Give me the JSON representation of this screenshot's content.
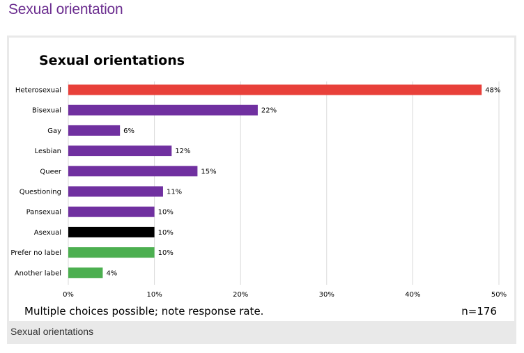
{
  "page": {
    "heading": "Sexual orientation",
    "caption": "Sexual orientations"
  },
  "colors": {
    "heading": "#6b2d8f",
    "gridline": "#d9d9d9"
  },
  "chart_data": {
    "type": "bar",
    "orientation": "horizontal",
    "title": "Sexual orientations",
    "categories": [
      "Heterosexual",
      "Bisexual",
      "Gay",
      "Lesbian",
      "Queer",
      "Questioning",
      "Pansexual",
      "Asexual",
      "Prefer no label",
      "Another label"
    ],
    "values": [
      48,
      22,
      6,
      12,
      15,
      11,
      10,
      10,
      10,
      4
    ],
    "value_labels": [
      "48%",
      "22%",
      "6%",
      "12%",
      "15%",
      "11%",
      "10%",
      "10%",
      "10%",
      "4%"
    ],
    "colors": [
      "#e8403a",
      "#7030a0",
      "#7030a0",
      "#7030a0",
      "#7030a0",
      "#7030a0",
      "#7030a0",
      "#000000",
      "#4caf50",
      "#4caf50"
    ],
    "xlim": [
      0,
      50
    ],
    "xticks": [
      0,
      10,
      20,
      30,
      40,
      50
    ],
    "xtick_labels": [
      "0%",
      "10%",
      "20%",
      "30%",
      "40%",
      "50%"
    ],
    "xlabel": "",
    "ylabel": "",
    "grid": true,
    "note": "Multiple choices possible; note response rate.",
    "sample_size": "n=176"
  }
}
